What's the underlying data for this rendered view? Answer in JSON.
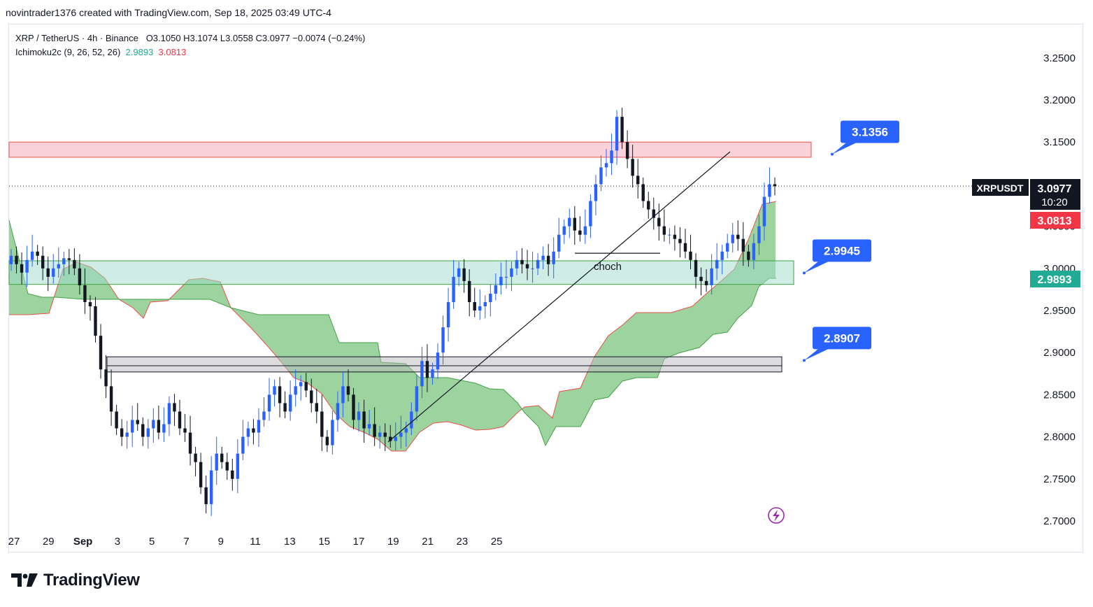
{
  "header": {
    "credit": "novintrader1376 created with TradingView.com, Sep 18, 2025 03:49 UTC-4"
  },
  "legend": {
    "symbol_line": "XRP / TetherUS · 4h · Binance",
    "ohlc": "O3.1050  H3.1074  L3.0558  C3.0977  −0.0074 (−0.24%)",
    "indicator": "Ichimoku2c (9, 26, 52, 26)",
    "indicator_v1": "2.9893",
    "indicator_v2": "3.0813"
  },
  "chart_data": {
    "type": "candlestick",
    "symbol": "XRPUSDT",
    "interval": "4h",
    "y_ticks": [
      "3.2500",
      "3.2000",
      "3.1500",
      "3.0500",
      "3.0000",
      "2.9500",
      "2.9000",
      "2.8500",
      "2.8000",
      "2.7500",
      "2.7000"
    ],
    "x_ticks": [
      "27",
      "29",
      "Sep",
      "3",
      "5",
      "7",
      "9",
      "11",
      "13",
      "15",
      "17",
      "19",
      "21",
      "23",
      "25"
    ],
    "ylim": [
      2.68,
      3.29
    ],
    "price_label": {
      "symbol": "XRPUSDT",
      "price": "3.0977",
      "countdown": "10:20"
    },
    "ichimoku_labels": {
      "span_a": "3.0813",
      "span_b": "2.9893"
    },
    "zones": [
      {
        "name": "resistance",
        "from": 3.132,
        "to": 3.15,
        "color": "#f7a6b0"
      },
      {
        "name": "demand",
        "from": 2.981,
        "to": 3.009,
        "color": "#9fdccb"
      },
      {
        "name": "support",
        "from": 2.877,
        "to": 2.895,
        "color": "#b9b9bf"
      }
    ],
    "levels": [
      {
        "label": "3.1356",
        "price": 3.1356
      },
      {
        "label": "2.9945",
        "price": 2.9945
      },
      {
        "label": "2.8907",
        "price": 2.8907
      }
    ],
    "annotations": {
      "choch": "choch",
      "choch_price": 3.018
    },
    "colors": {
      "up": "#2962ff",
      "down": "#131722",
      "cloud": "#4caf50",
      "cloud_edge": "#e5514c"
    }
  }
}
